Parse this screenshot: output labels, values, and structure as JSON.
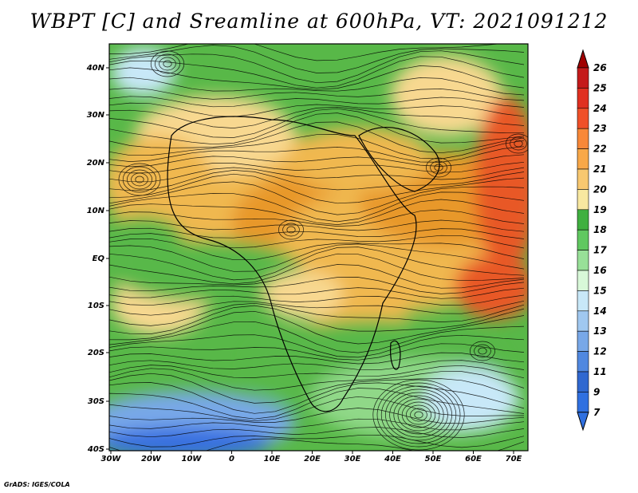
{
  "title": "WBPT [C] and Sreamline at 600hPa, VT: 2021091212",
  "credit": "GrADS: IGES/COLA",
  "lon_labels": [
    "30W",
    "20W",
    "10W",
    "0",
    "10E",
    "20E",
    "30E",
    "40E",
    "50E",
    "60E",
    "70E"
  ],
  "lat_labels": [
    "40N",
    "30N",
    "20N",
    "10N",
    "EQ",
    "10S",
    "20S",
    "30S",
    "40S"
  ],
  "colorbar": {
    "levels": [
      "26",
      "25",
      "24",
      "23",
      "22",
      "21",
      "20",
      "19",
      "18",
      "17",
      "16",
      "15",
      "14",
      "13",
      "12",
      "11",
      "9",
      "7"
    ],
    "colors": [
      "#a00000",
      "#c41a1a",
      "#e03020",
      "#f05028",
      "#f88838",
      "#f8a848",
      "#f8c870",
      "#f8e8a0",
      "#40b040",
      "#60c860",
      "#98e098",
      "#d8f8d8",
      "#c8e8f8",
      "#a0c8f0",
      "#78a8e8",
      "#5088e0",
      "#3068d0",
      "#3070e0"
    ]
  },
  "field_colors": {
    "warm_dark": "#e8982c",
    "warm": "#f0b850",
    "warm_light": "#f8d890",
    "green": "#58b848",
    "green_light": "#90d888",
    "cold_light": "#c8e8f8",
    "cold": "#78a8e8",
    "cold_dark": "#3870e0",
    "hot": "#e85828"
  }
}
